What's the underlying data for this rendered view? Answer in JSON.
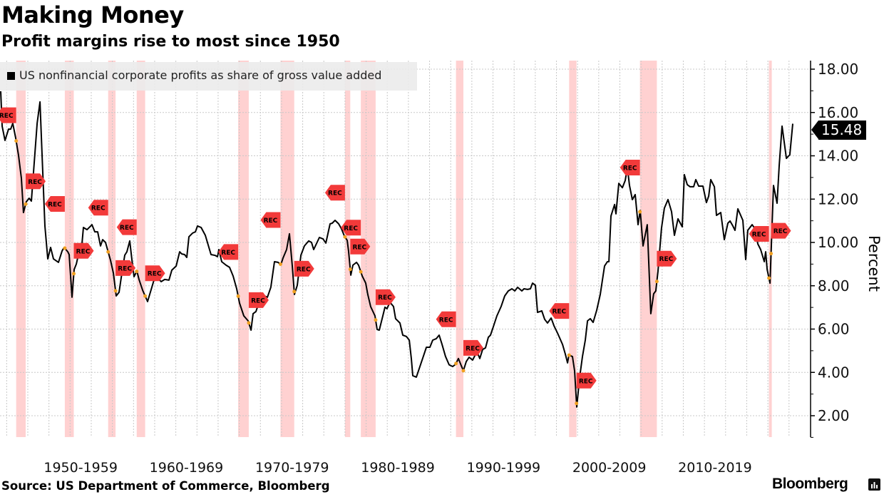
{
  "header": {
    "title": "Making Money",
    "subtitle": "Profit margins rise to most since 1950"
  },
  "footer": {
    "source": "Source: US Department of Commerce, Bloomberg",
    "brand": "Bloomberg"
  },
  "chart_data": {
    "type": "line",
    "title": "Making Money",
    "subtitle": "Profit margins rise to most since 1950",
    "ylabel": "Percent",
    "xlabel": "",
    "ylim": [
      1,
      18.4
    ],
    "xlim": [
      1947.37,
      2024.0
    ],
    "y_ticks": [
      "18.00",
      "16.00",
      "14.00",
      "12.00",
      "10.00",
      "8.00",
      "6.00",
      "4.00",
      "2.00"
    ],
    "x_tick_labels": [
      {
        "label": "1950-1959",
        "center": 1955
      },
      {
        "label": "1960-1969",
        "center": 1965
      },
      {
        "label": "1970-1979",
        "center": 1975
      },
      {
        "label": "1980-1989",
        "center": 1985
      },
      {
        "label": "1990-1999",
        "center": 1995
      },
      {
        "label": "2000-2009",
        "center": 2005
      },
      {
        "label": "2010-2019",
        "center": 2015
      }
    ],
    "grid": true,
    "legend_placement": "top-left",
    "y_axis_side": "right",
    "last_value_label": "15.48",
    "recession_label": "REC",
    "colors": {
      "line": "#000000",
      "recession_band": "#ffc9c9",
      "recession_flag": "#f23a3a",
      "marker": "#f0a020"
    },
    "recessions": [
      [
        1948.9,
        1949.8
      ],
      [
        1953.5,
        1954.35
      ],
      [
        1957.6,
        1958.3
      ],
      [
        1960.3,
        1961.1
      ],
      [
        1969.9,
        1970.9
      ],
      [
        1973.9,
        1975.2
      ],
      [
        1980.0,
        1980.5
      ],
      [
        1981.5,
        1982.9
      ],
      [
        1990.5,
        1991.2
      ],
      [
        2001.2,
        2001.9
      ],
      [
        2007.9,
        2009.5
      ],
      [
        2020.1,
        2020.3
      ]
    ],
    "series": [
      {
        "name": "US nonfinancial corporate profits as share of gross value added",
        "x": [
          1947.44,
          1947.57,
          1947.84,
          1948.18,
          1948.38,
          1948.58,
          1948.85,
          1949.12,
          1949.39,
          1949.59,
          1949.86,
          1950.13,
          1950.34,
          1950.88,
          1951.15,
          1951.35,
          1951.62,
          1951.89,
          1952.16,
          1952.43,
          1952.9,
          1953.24,
          1953.44,
          1953.78,
          1953.91,
          1954.18,
          1954.38,
          1954.59,
          1954.85,
          1955.12,
          1955.26,
          1955.6,
          1955.87,
          1956.07,
          1956.34,
          1956.61,
          1956.88,
          1957.08,
          1957.35,
          1957.82,
          1958.09,
          1958.36,
          1958.63,
          1958.9,
          1959.17,
          1959.37,
          1959.64,
          1959.84,
          1960.05,
          1960.32,
          1960.52,
          1960.86,
          1961.33,
          1961.73,
          1962.07,
          1962.61,
          1962.95,
          1963.35,
          1963.62,
          1964.03,
          1964.36,
          1964.56,
          1964.83,
          1965.04,
          1965.24,
          1965.58,
          1965.85,
          1966.05,
          1966.39,
          1966.79,
          1967.33,
          1967.73,
          1967.94,
          1968.07,
          1968.34,
          1968.75,
          1969.08,
          1969.42,
          1969.76,
          1970.03,
          1970.43,
          1970.84,
          1971.11,
          1971.31,
          1971.58,
          1971.85,
          1972.12,
          1972.39,
          1972.66,
          1972.99,
          1973.33,
          1973.67,
          1973.94,
          1974.14,
          1974.48,
          1974.75,
          1975.02,
          1975.22,
          1975.49,
          1975.83,
          1976.16,
          1976.57,
          1976.84,
          1977.04,
          1977.58,
          1977.92,
          1978.19,
          1978.59,
          1978.79,
          1979.06,
          1979.4,
          1979.67,
          1979.94,
          1980.21,
          1980.34,
          1980.55,
          1980.75,
          1981.09,
          1981.29,
          1981.63,
          1981.96,
          1982.16,
          1982.43,
          1982.84,
          1983.04,
          1983.24,
          1983.58,
          1983.78,
          1983.98,
          1984.25,
          1984.59,
          1984.79,
          1985.2,
          1985.47,
          1985.8,
          1986.08,
          1986.28,
          1986.41,
          1986.75,
          1987.02,
          1987.36,
          1987.7,
          1988.03,
          1988.3,
          1988.64,
          1988.91,
          1989.18,
          1989.51,
          1989.85,
          1990.19,
          1990.46,
          1990.73,
          1991.0,
          1991.2,
          1991.47,
          1991.74,
          1992.08,
          1992.48,
          1992.75,
          1993.02,
          1993.29,
          1993.56,
          1993.76,
          1994.03,
          1994.37,
          1994.77,
          1995.11,
          1995.45,
          1995.79,
          1996.06,
          1996.33,
          1996.73,
          1996.93,
          1997.27,
          1997.54,
          1997.74,
          1998.01,
          1998.21,
          1998.62,
          1998.89,
          1999.16,
          1999.5,
          1999.77,
          2000.1,
          2000.31,
          2000.58,
          2000.85,
          2001.05,
          2001.18,
          2001.52,
          2001.72,
          2001.92,
          2002.19,
          2002.46,
          2002.73,
          2002.94,
          2003.2,
          2003.47,
          2003.81,
          2004.15,
          2004.35,
          2004.55,
          2004.82,
          2004.96,
          2005.16,
          2005.5,
          2005.63,
          2005.9,
          2006.24,
          2006.51,
          2006.71,
          2006.91,
          2007.18,
          2007.45,
          2007.72,
          2007.92,
          2008.19,
          2008.59,
          2008.93,
          2009.2,
          2009.4,
          2009.61,
          2009.94,
          2010.21,
          2010.55,
          2010.89,
          2011.16,
          2011.5,
          2011.9,
          2012.1,
          2012.37,
          2012.64,
          2012.98,
          2013.18,
          2013.45,
          2013.86,
          2014.19,
          2014.4,
          2014.6,
          2014.94,
          2015.14,
          2015.54,
          2015.88,
          2016.22,
          2016.42,
          2016.69,
          2016.89,
          2017.16,
          2017.63,
          2017.9,
          2018.1,
          2018.51,
          2018.85,
          2019.05,
          2019.32,
          2019.66,
          2019.79,
          2019.93,
          2020.2,
          2020.53,
          2020.87,
          2021.07,
          2021.34,
          2021.75,
          2022.08,
          2022.35
        ],
        "y": [
          16.98,
          15.37,
          14.71,
          15.23,
          15.23,
          15.5,
          14.84,
          14.02,
          12.96,
          11.38,
          11.88,
          12.04,
          11.91,
          15.5,
          16.49,
          14.05,
          10.76,
          9.24,
          9.77,
          9.24,
          9.08,
          9.61,
          9.77,
          9.57,
          9.44,
          7.47,
          8.75,
          9.01,
          9.57,
          9.9,
          10.69,
          10.59,
          10.72,
          10.82,
          10.49,
          10.49,
          9.84,
          10.13,
          10.0,
          9.18,
          8.59,
          7.53,
          7.7,
          8.59,
          9.41,
          9.57,
          10.07,
          9.24,
          8.42,
          8.68,
          8.29,
          7.79,
          7.27,
          7.93,
          8.49,
          8.19,
          8.29,
          8.26,
          8.72,
          8.91,
          9.57,
          9.47,
          9.44,
          9.31,
          10.26,
          10.43,
          10.49,
          10.76,
          10.69,
          10.33,
          9.44,
          9.4,
          9.34,
          9.67,
          9.11,
          8.95,
          8.85,
          8.45,
          7.86,
          7.2,
          6.61,
          6.38,
          5.95,
          6.71,
          6.81,
          7.2,
          7.43,
          7.53,
          7.47,
          7.93,
          9.11,
          9.08,
          8.98,
          9.28,
          9.67,
          10.4,
          8.91,
          7.6,
          8.02,
          9.41,
          9.84,
          10.07,
          10.0,
          9.67,
          10.23,
          10.16,
          9.97,
          10.86,
          10.89,
          11.02,
          10.86,
          10.63,
          10.3,
          10.1,
          9.61,
          8.49,
          8.95,
          9.08,
          8.95,
          8.45,
          8.12,
          7.6,
          7.04,
          6.61,
          5.98,
          5.95,
          6.61,
          7.01,
          6.94,
          7.24,
          7.04,
          6.48,
          6.28,
          5.72,
          5.66,
          5.49,
          4.63,
          3.85,
          3.78,
          4.17,
          4.67,
          5.16,
          5.16,
          5.49,
          5.56,
          5.72,
          5.3,
          4.74,
          4.35,
          4.27,
          4.37,
          4.64,
          4.31,
          4.08,
          4.5,
          4.7,
          4.57,
          4.96,
          4.64,
          5.06,
          5.13,
          5.62,
          5.72,
          6.11,
          6.61,
          7.04,
          7.53,
          7.76,
          7.86,
          7.76,
          7.93,
          7.76,
          7.86,
          7.83,
          7.86,
          8.12,
          8.02,
          6.77,
          6.84,
          6.45,
          6.28,
          6.51,
          6.15,
          5.82,
          5.59,
          5.29,
          4.83,
          4.44,
          4.8,
          4.73,
          4.07,
          2.4,
          3.75,
          4.73,
          5.49,
          6.38,
          6.48,
          6.31,
          6.87,
          7.6,
          8.26,
          8.91,
          9.11,
          9.11,
          11.22,
          11.75,
          11.32,
          12.73,
          12.53,
          12.86,
          13.46,
          12.63,
          11.98,
          12.21,
          10.82,
          11.48,
          9.84,
          10.82,
          6.71,
          7.63,
          7.76,
          8.68,
          10.66,
          11.58,
          11.98,
          11.42,
          10.33,
          11.09,
          10.72,
          13.13,
          12.67,
          12.57,
          12.57,
          12.9,
          12.6,
          12.6,
          11.84,
          12.14,
          12.9,
          12.57,
          11.25,
          11.38,
          10.13,
          10.89,
          10.99,
          10.76,
          10.56,
          11.55,
          11.02,
          9.21,
          10.56,
          10.82,
          10.59,
          9.93,
          9.67,
          9.11,
          9.57,
          8.75,
          8.12,
          12.63,
          11.81,
          13.55,
          15.37,
          13.88,
          14.05,
          15.48
        ]
      }
    ]
  }
}
